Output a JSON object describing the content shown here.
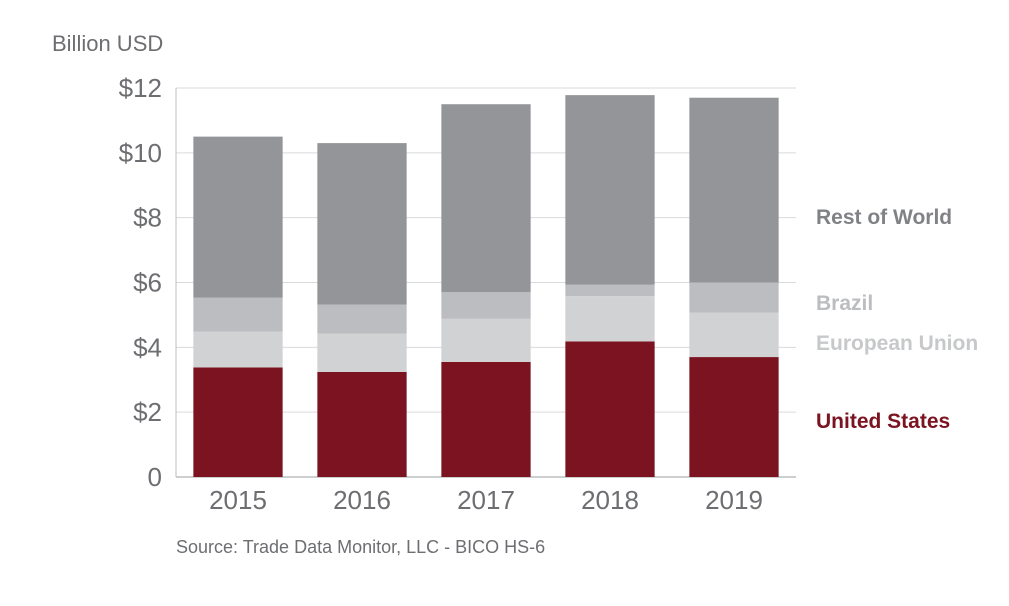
{
  "chart_data": {
    "type": "bar",
    "stacked": true,
    "ylabel": "Billion USD",
    "ylim": [
      0,
      12
    ],
    "yticks": [
      {
        "value": 0,
        "label": "0"
      },
      {
        "value": 2,
        "label": "$2"
      },
      {
        "value": 4,
        "label": "$4"
      },
      {
        "value": 6,
        "label": "$6"
      },
      {
        "value": 8,
        "label": "$8"
      },
      {
        "value": 10,
        "label": "$10"
      },
      {
        "value": 12,
        "label": "$12"
      }
    ],
    "grid": true,
    "categories": [
      "2015",
      "2016",
      "2017",
      "2018",
      "2019"
    ],
    "series": [
      {
        "name": "United States",
        "color": "#7b1420",
        "values": [
          3.38,
          3.24,
          3.55,
          4.18,
          3.7
        ]
      },
      {
        "name": "European Union",
        "color": "#d1d2d4",
        "values": [
          1.1,
          1.18,
          1.33,
          1.4,
          1.37
        ]
      },
      {
        "name": "Brazil",
        "color": "#bcbdc0",
        "values": [
          1.05,
          0.9,
          0.82,
          0.35,
          0.93
        ]
      },
      {
        "name": "Rest of World",
        "color": "#939598",
        "values": [
          4.97,
          4.98,
          5.8,
          5.85,
          5.7
        ]
      }
    ],
    "legend_placement": "right",
    "source": "Source: Trade Data Monitor, LLC - BICO HS-6"
  }
}
